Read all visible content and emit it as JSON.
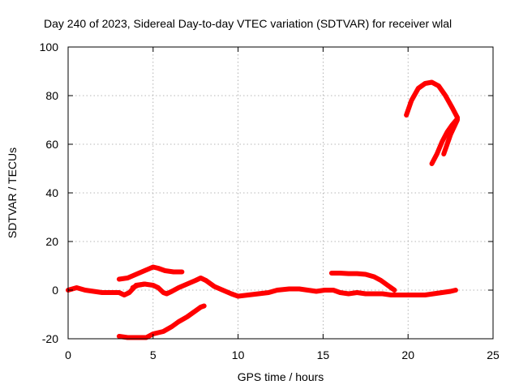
{
  "chart_data": {
    "type": "line",
    "title": "Day 240 of 2023, Sidereal Day-to-day VTEC variation (SDTVAR) for receiver wlal",
    "xlabel": "GPS time / hours",
    "ylabel": "SDTVAR / TECUs",
    "xlim": [
      0,
      25
    ],
    "ylim": [
      -20,
      100
    ],
    "xticks": [
      "0",
      "5",
      "10",
      "15",
      "20",
      "25"
    ],
    "xtick_values": [
      0,
      5,
      10,
      15,
      20,
      25
    ],
    "yticks": [
      "-20",
      "0",
      "20",
      "40",
      "60",
      "80",
      "100"
    ],
    "ytick_values": [
      -20,
      0,
      20,
      40,
      60,
      80,
      100
    ],
    "grid": true,
    "series_color": "#ff0000",
    "series": [
      {
        "name": "trace-1",
        "points": [
          [
            0,
            0
          ],
          [
            0.5,
            1
          ],
          [
            1,
            0
          ],
          [
            1.5,
            -0.5
          ],
          [
            2,
            -1
          ],
          [
            2.5,
            -1
          ],
          [
            3,
            -1
          ],
          [
            3.3,
            -2
          ],
          [
            3.6,
            -1
          ],
          [
            4,
            2
          ],
          [
            4.5,
            2.5
          ],
          [
            5,
            2
          ],
          [
            5.3,
            1
          ],
          [
            5.6,
            -1
          ],
          [
            5.8,
            -1.5
          ],
          [
            6.1,
            -0.5
          ],
          [
            6.5,
            1
          ],
          [
            7,
            2.5
          ],
          [
            7.5,
            4
          ],
          [
            7.8,
            5
          ],
          [
            8.1,
            4
          ],
          [
            8.6,
            1.5
          ],
          [
            9.1,
            0
          ],
          [
            9.6,
            -1.5
          ],
          [
            10,
            -2.5
          ],
          [
            10.6,
            -2
          ],
          [
            11.2,
            -1.5
          ],
          [
            11.8,
            -1
          ],
          [
            12.3,
            0
          ],
          [
            13,
            0.5
          ],
          [
            13.6,
            0.5
          ],
          [
            14.1,
            0
          ],
          [
            14.6,
            -0.5
          ],
          [
            15.1,
            0
          ],
          [
            15.6,
            0
          ],
          [
            16,
            -1
          ],
          [
            16.5,
            -1.5
          ],
          [
            17,
            -1
          ],
          [
            17.5,
            -1.5
          ],
          [
            18,
            -1.5
          ],
          [
            18.5,
            -1.5
          ],
          [
            19,
            -2
          ],
          [
            19.5,
            -2
          ],
          [
            20,
            -2
          ],
          [
            20.5,
            -2
          ],
          [
            21,
            -2
          ],
          [
            21.5,
            -1.5
          ],
          [
            22,
            -1
          ],
          [
            22.5,
            -0.5
          ],
          [
            22.8,
            0
          ]
        ]
      },
      {
        "name": "trace-2",
        "points": [
          [
            3,
            4.5
          ],
          [
            3.5,
            5
          ],
          [
            4,
            6.5
          ],
          [
            4.5,
            8
          ],
          [
            5,
            9.5
          ],
          [
            5.3,
            9
          ],
          [
            5.7,
            8
          ],
          [
            6.2,
            7.5
          ],
          [
            6.7,
            7.5
          ]
        ]
      },
      {
        "name": "trace-3",
        "points": [
          [
            3.8,
            1
          ],
          [
            4.1,
            2
          ],
          [
            4.5,
            2.5
          ]
        ]
      },
      {
        "name": "trace-4",
        "points": [
          [
            3,
            -19
          ],
          [
            3.5,
            -19.5
          ],
          [
            4,
            -19.5
          ],
          [
            4.6,
            -19.5
          ],
          [
            5,
            -18
          ],
          [
            5.6,
            -17
          ],
          [
            6.1,
            -15
          ],
          [
            6.5,
            -13
          ],
          [
            7,
            -11
          ],
          [
            7.4,
            -9
          ],
          [
            7.8,
            -7
          ],
          [
            8,
            -6.5
          ]
        ]
      },
      {
        "name": "trace-5",
        "points": [
          [
            15.5,
            7
          ],
          [
            16,
            7
          ],
          [
            16.5,
            6.8
          ],
          [
            17,
            6.8
          ],
          [
            17.5,
            6.5
          ],
          [
            18,
            5.5
          ],
          [
            18.4,
            4
          ],
          [
            18.8,
            2
          ],
          [
            19.2,
            0
          ]
        ]
      },
      {
        "name": "trace-6",
        "points": [
          [
            19.9,
            72
          ],
          [
            20.2,
            78
          ],
          [
            20.6,
            83
          ],
          [
            21,
            85
          ],
          [
            21.4,
            85.5
          ],
          [
            21.8,
            84
          ],
          [
            22.2,
            80
          ],
          [
            22.6,
            75
          ],
          [
            22.9,
            71
          ]
        ]
      },
      {
        "name": "trace-7",
        "points": [
          [
            21.4,
            52
          ],
          [
            21.7,
            56
          ],
          [
            22,
            61
          ],
          [
            22.3,
            65
          ],
          [
            22.6,
            68
          ],
          [
            22.9,
            70.5
          ]
        ]
      },
      {
        "name": "trace-8",
        "points": [
          [
            22.1,
            56
          ],
          [
            22.3,
            60
          ],
          [
            22.5,
            64
          ],
          [
            22.7,
            67
          ],
          [
            22.9,
            70
          ]
        ]
      }
    ]
  }
}
